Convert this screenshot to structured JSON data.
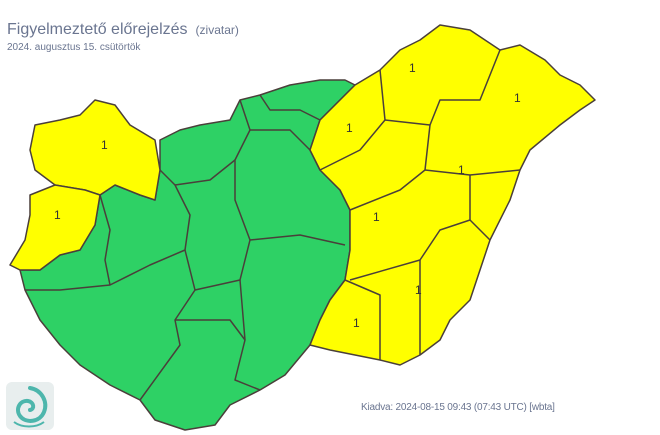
{
  "header": {
    "title": "Figyelmeztető előrejelzés",
    "subtitle": "(zivatar)",
    "date": "2024. augusztus 15. csütörtök"
  },
  "footer": {
    "issued": "Kiadva: 2024-08-15 09:43 (07:43 UTC) [wbta]"
  },
  "colors": {
    "level0": "#2ed165",
    "level1": "#ffff00",
    "border": "#4a3f3a"
  },
  "map": {
    "regions": [
      {
        "name": "northwest",
        "level": "1"
      },
      {
        "name": "west",
        "level": "1"
      },
      {
        "name": "northeast",
        "level": "1"
      },
      {
        "name": "far-northeast",
        "level": "1"
      },
      {
        "name": "north",
        "level": "1"
      },
      {
        "name": "east",
        "level": "1"
      },
      {
        "name": "central-east",
        "level": "1"
      },
      {
        "name": "southeast",
        "level": "1"
      },
      {
        "name": "south-central-east",
        "level": "1"
      }
    ]
  },
  "logo": {
    "icon": "hungarian-met-service-logo"
  }
}
